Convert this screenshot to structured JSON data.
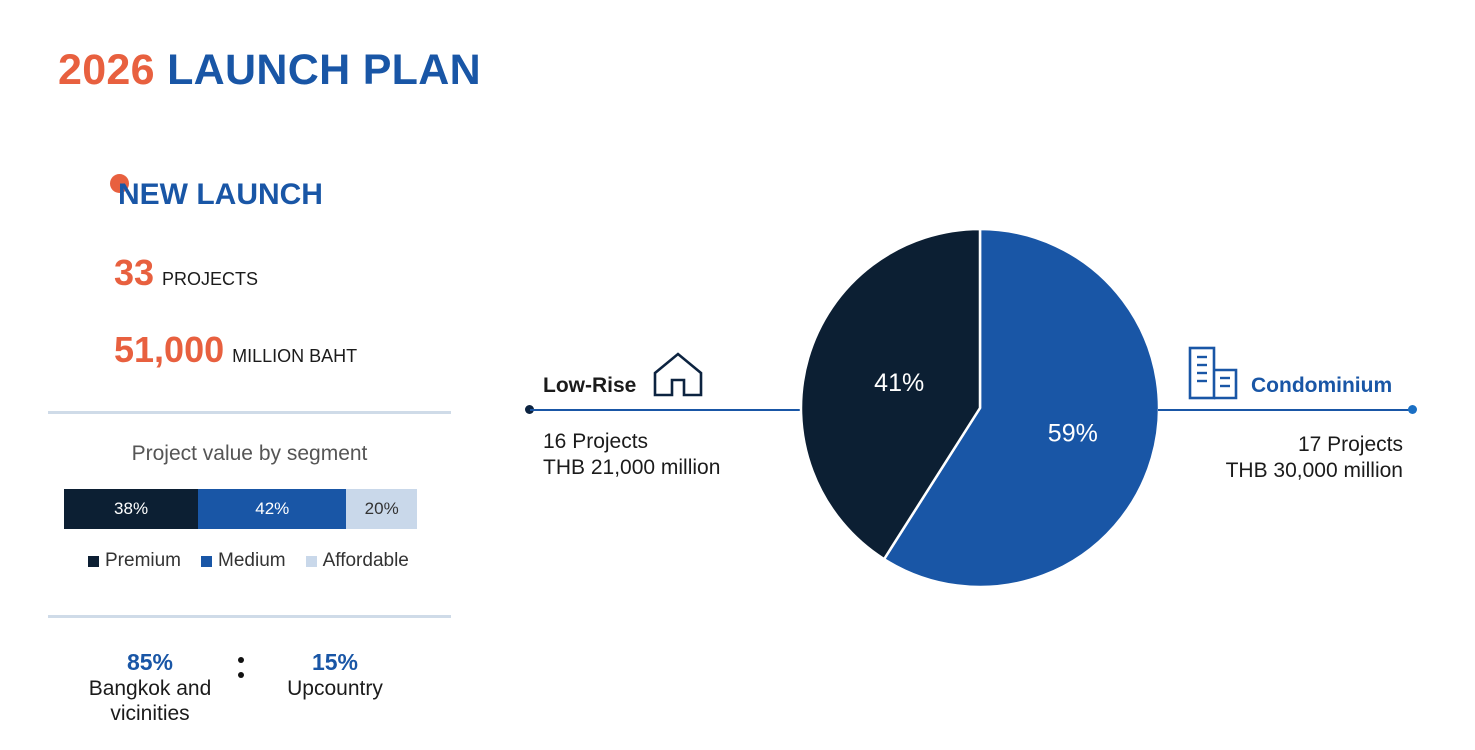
{
  "title": {
    "year": "2026",
    "rest": "LAUNCH PLAN"
  },
  "new_launch": {
    "heading": "NEW LAUNCH",
    "projects_value": "33",
    "projects_unit": "PROJECTS",
    "amount_value": "51,000",
    "amount_unit": "MILLION BAHT"
  },
  "segment": {
    "title": "Project value by segment",
    "items": [
      {
        "label": "Premium",
        "percent": 38,
        "text": "38%",
        "color": "#0c1f33",
        "text_color": "#ffffff"
      },
      {
        "label": "Medium",
        "percent": 42,
        "text": "42%",
        "color": "#1956a6",
        "text_color": "#ffffff"
      },
      {
        "label": "Affordable",
        "percent": 20,
        "text": "20%",
        "color": "#c9d8ea",
        "text_color": "#333333"
      }
    ]
  },
  "split": {
    "bangkok_pct": "85%",
    "bangkok_label": "Bangkok and vicinities",
    "upcountry_pct": "15%",
    "upcountry_label": "Upcountry"
  },
  "low_rise": {
    "label": "Low-Rise",
    "projects": "16 Projects",
    "value": "THB 21,000 million",
    "icon": "house-icon"
  },
  "condominium": {
    "label": "Condominium",
    "projects": "17 Projects",
    "value": "THB 30,000 million",
    "icon": "building-icon"
  },
  "chart_data": [
    {
      "type": "pie",
      "labels": [
        "Condominium",
        "Low-Rise"
      ],
      "values": [
        59,
        41
      ],
      "value_labels": [
        "59%",
        "41%"
      ],
      "colors": [
        "#1956a6",
        "#0c1f33"
      ],
      "start": "12 o'clock, clockwise"
    },
    {
      "type": "bar",
      "orientation": "horizontal-stacked",
      "title": "Project value by segment",
      "categories": [
        "Premium",
        "Medium",
        "Affordable"
      ],
      "values": [
        38,
        42,
        20
      ],
      "value_labels": [
        "38%",
        "42%",
        "20%"
      ],
      "legend": "bottom"
    }
  ]
}
